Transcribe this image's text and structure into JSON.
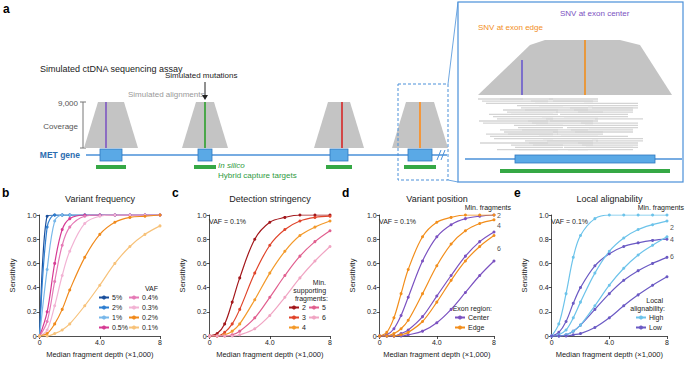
{
  "diagram": {
    "panel": "a",
    "title": "Simulated ctDNA sequencing assay",
    "coverage_value": "9,000",
    "coverage_label": "Coverage",
    "alignments_label": "Simulated alignments",
    "mutations_label": "Simulated mutations",
    "gene_label": "MET gene",
    "targets_label": [
      "In silico",
      "Hybrid capture targets"
    ],
    "inset": {
      "edge_label": "SNV at exon edge",
      "center_label": "SNV at exon center"
    }
  },
  "chart_data": [
    {
      "panel": "b",
      "type": "line",
      "title": "Variant frequency",
      "x_label": "Median fragment depth (×1,000)",
      "y_label": "Sensitivity",
      "x": [
        0,
        0.5,
        1,
        1.5,
        2,
        3,
        4,
        5,
        6,
        7,
        8
      ],
      "xlim": [
        0,
        8
      ],
      "xticks": [
        0,
        {
          "value": 4,
          "label": "4.0"
        },
        8
      ],
      "ylim": [
        0,
        1
      ],
      "yticks": [
        0,
        0.2,
        0.4,
        0.6,
        0.8,
        {
          "value": 1,
          "label": "1.0"
        }
      ],
      "grid": false,
      "marker": "circle",
      "line_style": "solid",
      "legend": "lower right",
      "legend_title": "VAF",
      "series": [
        {
          "name": "5%",
          "color": "#1a4f9c",
          "values": [
            0,
            0.99,
            1,
            1,
            1,
            1,
            1,
            1,
            1,
            1,
            1
          ]
        },
        {
          "name": "2%",
          "color": "#2f7fd1",
          "values": [
            0,
            0.9,
            1,
            1,
            1,
            1,
            1,
            1,
            1,
            1,
            1
          ]
        },
        {
          "name": "1%",
          "color": "#79b8ea",
          "values": [
            0,
            0.55,
            0.95,
            1,
            1,
            1,
            1,
            1,
            1,
            1,
            1
          ]
        },
        {
          "name": "0.5%",
          "color": "#d63b94",
          "values": [
            0,
            0.2,
            0.6,
            0.88,
            0.97,
            1,
            1,
            1,
            1,
            1,
            1
          ]
        },
        {
          "name": "0.4%",
          "color": "#e57ab6",
          "values": [
            0,
            0.12,
            0.45,
            0.75,
            0.9,
            0.99,
            1,
            1,
            1,
            1,
            1
          ]
        },
        {
          "name": "0.3%",
          "color": "#f2b3d4",
          "values": [
            0,
            0.05,
            0.25,
            0.5,
            0.7,
            0.93,
            0.99,
            1,
            1,
            1,
            1
          ]
        },
        {
          "name": "0.2%",
          "color": "#f08a1c",
          "values": [
            0,
            0.02,
            0.1,
            0.22,
            0.38,
            0.65,
            0.84,
            0.94,
            0.98,
            0.99,
            1
          ]
        },
        {
          "name": "0.1%",
          "color": "#f7c27a",
          "values": [
            0,
            0,
            0.02,
            0.05,
            0.1,
            0.25,
            0.42,
            0.6,
            0.74,
            0.84,
            0.91
          ]
        }
      ]
    },
    {
      "panel": "c",
      "type": "line",
      "title": "Detection stringency",
      "annotation": "VAF = 0.1%",
      "x_label": "Median fragment depth (×1,000)",
      "y_label": "Sensitivity",
      "x": [
        0,
        0.5,
        1,
        1.5,
        2,
        3,
        4,
        5,
        6,
        7,
        8
      ],
      "xlim": [
        0,
        8
      ],
      "xticks": [
        0,
        {
          "value": 4,
          "label": "4.0"
        },
        8
      ],
      "ylim": [
        0,
        1
      ],
      "yticks": [
        0,
        0.2,
        0.4,
        0.6,
        0.8,
        {
          "value": 1,
          "label": "1.0"
        }
      ],
      "grid": false,
      "marker": "circle",
      "line_style": "solid",
      "legend": "lower right",
      "legend_title": "Min. supporting fragments:",
      "series": [
        {
          "name": "2",
          "color": "#a3171b",
          "values": [
            0,
            0.02,
            0.1,
            0.28,
            0.48,
            0.8,
            0.94,
            0.98,
            1,
            1,
            1
          ]
        },
        {
          "name": "3",
          "color": "#e0452b",
          "values": [
            0,
            0,
            0.03,
            0.1,
            0.22,
            0.52,
            0.75,
            0.88,
            0.95,
            0.98,
            0.99
          ]
        },
        {
          "name": "4",
          "color": "#f39a2b",
          "values": [
            0,
            0,
            0.01,
            0.04,
            0.1,
            0.3,
            0.52,
            0.7,
            0.83,
            0.9,
            0.95
          ]
        },
        {
          "name": "5",
          "color": "#e15f8f",
          "values": [
            0,
            0,
            0,
            0.01,
            0.04,
            0.15,
            0.32,
            0.5,
            0.66,
            0.78,
            0.87
          ]
        },
        {
          "name": "6",
          "color": "#f0a5c3",
          "values": [
            0,
            0,
            0,
            0,
            0.01,
            0.06,
            0.17,
            0.32,
            0.48,
            0.62,
            0.74
          ]
        }
      ]
    },
    {
      "panel": "d",
      "type": "line",
      "title": "Variant position",
      "annotation": "VAF = 0.1%",
      "group_title": "Min. fragments",
      "x_label": "Median fragment depth (×1,000)",
      "y_label": "Sensitivity",
      "x": [
        0,
        0.5,
        1,
        1.5,
        2,
        3,
        4,
        5,
        6,
        7,
        8
      ],
      "xlim": [
        0,
        8
      ],
      "xticks": [
        0,
        {
          "value": 4,
          "label": "4.0"
        },
        8
      ],
      "ylim": [
        0,
        1
      ],
      "yticks": [
        0,
        0.2,
        0.4,
        0.6,
        0.8,
        {
          "value": 1,
          "label": "1.0"
        }
      ],
      "grid": false,
      "marker": "circle",
      "line_style": "solid",
      "legend": "lower right",
      "legend_title": "Exon region:",
      "series": [
        {
          "name": "Center",
          "group": 2,
          "color": "#7b52c1",
          "values": [
            0,
            0.01,
            0.06,
            0.17,
            0.32,
            0.62,
            0.82,
            0.92,
            0.97,
            0.99,
            1
          ]
        },
        {
          "name": "Edge",
          "group": 2,
          "color": "#f28e1c",
          "values": [
            0,
            0.03,
            0.15,
            0.35,
            0.55,
            0.82,
            0.94,
            0.98,
            1,
            1,
            1
          ]
        },
        {
          "name": "Center",
          "group": 4,
          "color": "#7b52c1",
          "values": [
            0,
            0,
            0,
            0.02,
            0.05,
            0.16,
            0.33,
            0.5,
            0.66,
            0.78,
            0.86
          ]
        },
        {
          "name": "Edge",
          "group": 4,
          "color": "#f28e1c",
          "values": [
            0,
            0,
            0.02,
            0.06,
            0.13,
            0.35,
            0.58,
            0.76,
            0.87,
            0.93,
            0.96
          ]
        },
        {
          "name": "Center",
          "group": 6,
          "color": "#7b52c1",
          "values": [
            0,
            0,
            0,
            0,
            0.01,
            0.04,
            0.11,
            0.22,
            0.36,
            0.5,
            0.62
          ]
        },
        {
          "name": "Edge",
          "group": 6,
          "color": "#f28e1c",
          "values": [
            0,
            0,
            0,
            0.01,
            0.03,
            0.12,
            0.28,
            0.46,
            0.62,
            0.74,
            0.83
          ]
        }
      ]
    },
    {
      "panel": "e",
      "type": "line",
      "title": "Local alignability",
      "annotation": "VAF = 0.1%",
      "group_title": "Min. fragments",
      "x_label": "Median fragment depth (×1,000)",
      "y_label": "Sensitivity",
      "x": [
        0,
        0.5,
        1,
        1.5,
        2,
        3,
        4,
        5,
        6,
        7,
        8
      ],
      "xlim": [
        0,
        8
      ],
      "xticks": [
        0,
        {
          "value": 4,
          "label": "4.0"
        },
        8
      ],
      "ylim": [
        0,
        1
      ],
      "yticks": [
        0,
        0.2,
        0.4,
        0.6,
        0.8,
        {
          "value": 1,
          "label": "1.0"
        }
      ],
      "grid": false,
      "marker": "circle",
      "line_style": "solid",
      "legend": "lower right",
      "legend_title": "Local alignability:",
      "series": [
        {
          "name": "High",
          "group": 2,
          "color": "#6cc3ea",
          "values": [
            0,
            0.1,
            0.35,
            0.65,
            0.83,
            0.97,
            1,
            1,
            1,
            1,
            1
          ]
        },
        {
          "name": "Low",
          "group": 2,
          "color": "#6b5ac4",
          "values": [
            0,
            0.03,
            0.12,
            0.27,
            0.4,
            0.58,
            0.68,
            0.74,
            0.77,
            0.79,
            0.8
          ]
        },
        {
          "name": "High",
          "group": 4,
          "color": "#6cc3ea",
          "values": [
            0,
            0.01,
            0.05,
            0.15,
            0.28,
            0.52,
            0.7,
            0.81,
            0.88,
            0.92,
            0.95
          ]
        },
        {
          "name": "Low",
          "group": 4,
          "color": "#6b5ac4",
          "values": [
            0,
            0,
            0.01,
            0.04,
            0.09,
            0.22,
            0.35,
            0.46,
            0.54,
            0.6,
            0.65
          ]
        },
        {
          "name": "High",
          "group": 6,
          "color": "#6cc3ea",
          "values": [
            0,
            0,
            0.01,
            0.04,
            0.09,
            0.25,
            0.42,
            0.56,
            0.67,
            0.75,
            0.82
          ]
        },
        {
          "name": "Low",
          "group": 6,
          "color": "#6b5ac4",
          "values": [
            0,
            0,
            0,
            0.01,
            0.02,
            0.07,
            0.15,
            0.25,
            0.34,
            0.42,
            0.49
          ]
        }
      ]
    }
  ]
}
